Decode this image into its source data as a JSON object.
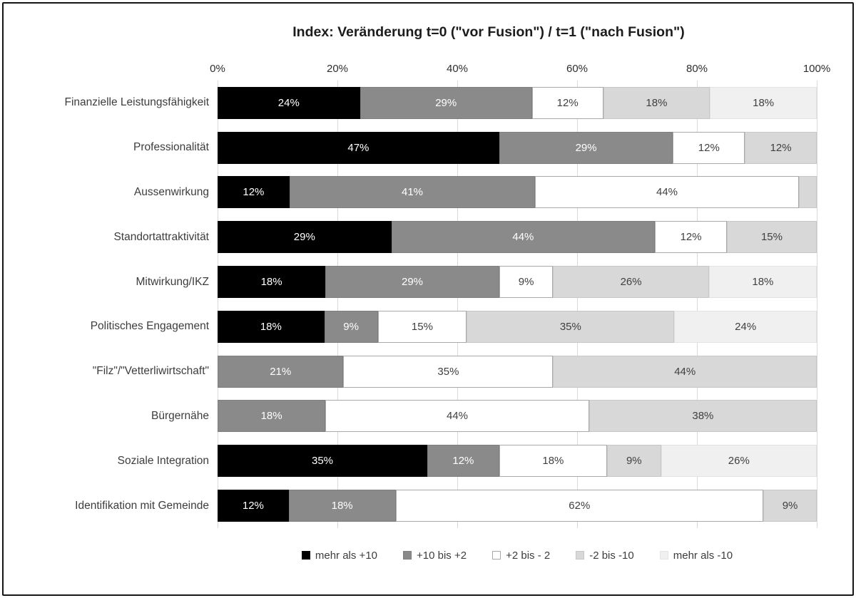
{
  "title": "Index: Veränderung t=0 (\"vor Fusion\") / t=1 (\"nach Fusion\")",
  "chart_data": {
    "type": "bar",
    "variant": "horizontal-100%-stacked",
    "title": "Index: Veränderung t=0 (\"vor Fusion\") / t=1 (\"nach Fusion\")",
    "x_ticks": [
      "0%",
      "20%",
      "40%",
      "60%",
      "80%",
      "100%"
    ],
    "xlim": [
      0,
      100
    ],
    "grid": "vertical-every-20pct",
    "legend_position": "bottom",
    "label_format": "{value}%",
    "min_label_value": 5,
    "categories": [
      "Finanzielle Leistungsfähigkeit",
      "Professionalität",
      "Aussenwirkung",
      "Standortattraktivität",
      "Mitwirkung/IKZ",
      "Politisches Engagement",
      "\"Filz\"/\"Vetterliwirtschaft\"",
      "Bürgernähe",
      "Soziale Integration",
      "Identifikation mit Gemeinde"
    ],
    "series": [
      {
        "name": "mehr als +10",
        "color": "#000000",
        "border": "#000000",
        "text_color": "#ffffff",
        "values": [
          24,
          47,
          12,
          29,
          18,
          18,
          0,
          0,
          35,
          12
        ]
      },
      {
        "name": "+10 bis +2",
        "color": "#8a8a8a",
        "border": "#7e7e7e",
        "text_color": "#ffffff",
        "values": [
          29,
          29,
          41,
          44,
          29,
          9,
          21,
          18,
          12,
          18
        ]
      },
      {
        "name": "+2 bis - 2",
        "color": "#ffffff",
        "border": "#a9a9a9",
        "text_color": "#404040",
        "values": [
          12,
          12,
          44,
          12,
          9,
          15,
          35,
          44,
          18,
          62
        ]
      },
      {
        "name": "-2 bis -10",
        "color": "#d8d8d8",
        "border": "#c7c7c7",
        "text_color": "#404040",
        "values": [
          18,
          12,
          3,
          15,
          26,
          35,
          44,
          38,
          9,
          9
        ]
      },
      {
        "name": "mehr als -10",
        "color": "#f0f0f0",
        "border": "#e3e3e3",
        "text_color": "#404040",
        "values": [
          18,
          0,
          0,
          0,
          18,
          24,
          0,
          0,
          26,
          0
        ]
      }
    ]
  }
}
